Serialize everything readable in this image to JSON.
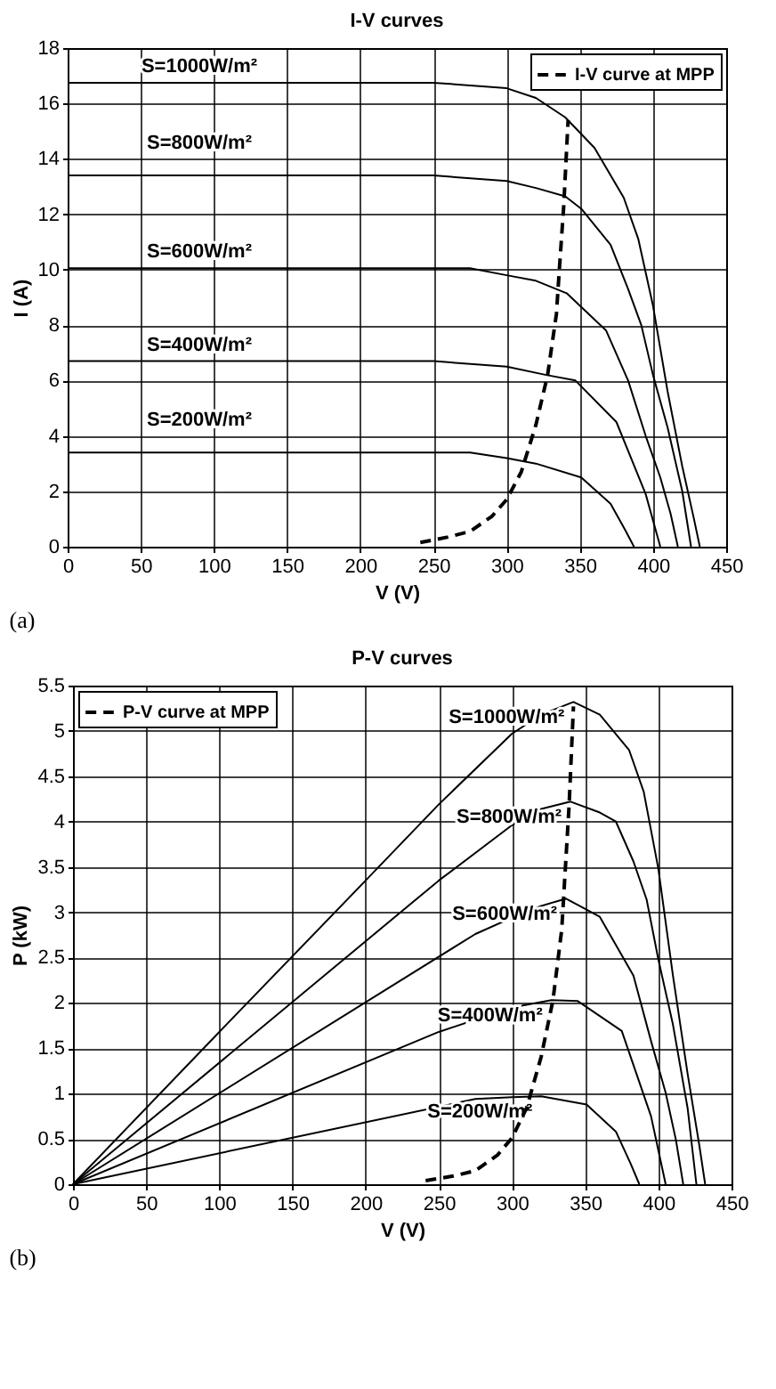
{
  "chart_data": [
    {
      "type": "line",
      "title": "I-V curves",
      "xlabel": "V (V)",
      "ylabel": "I (A)",
      "annotations": [
        "(a)"
      ],
      "xlim": [
        0,
        450
      ],
      "ylim": [
        0,
        18
      ],
      "xticks": [
        0,
        50,
        100,
        150,
        200,
        250,
        300,
        350,
        400,
        450
      ],
      "yticks": [
        0,
        2,
        4,
        6,
        8,
        10,
        12,
        14,
        16,
        18
      ],
      "grid": true,
      "legend": "top right",
      "line_style": "solid",
      "marker": "none",
      "series": [
        {
          "name": "S=1000W/m²",
          "color": "#000000",
          "x": [
            0,
            250,
            300,
            320,
            340,
            360,
            380,
            390,
            400,
            410,
            420,
            428,
            432
          ],
          "values": [
            16.75,
            16.75,
            16.55,
            16.2,
            15.5,
            14.4,
            12.6,
            11.1,
            8.7,
            5.6,
            2.9,
            1.0,
            0
          ]
        },
        {
          "name": "S=800W/m²",
          "color": "#000000",
          "x": [
            0,
            250,
            300,
            320,
            340,
            351,
            371,
            383,
            392,
            400,
            410,
            420,
            426
          ],
          "values": [
            13.4,
            13.4,
            13.2,
            12.95,
            12.65,
            12.2,
            10.9,
            9.3,
            8.0,
            6.2,
            4.3,
            2.0,
            0
          ]
        },
        {
          "name": "S=600W/m²",
          "color": "#000000",
          "x": [
            0,
            275,
            300,
            320,
            341,
            368,
            383,
            395,
            405,
            412,
            417
          ],
          "values": [
            10.05,
            10.05,
            9.8,
            9.6,
            9.15,
            7.8,
            6.0,
            4.0,
            2.5,
            1.2,
            0
          ]
        },
        {
          "name": "S=400W/m²",
          "color": "#000000",
          "x": [
            0,
            250,
            300,
            327,
            347,
            375,
            395,
            405
          ],
          "values": [
            6.7,
            6.7,
            6.5,
            6.2,
            6.0,
            4.5,
            1.9,
            0
          ]
        },
        {
          "name": "S=200W/m²",
          "color": "#000000",
          "x": [
            0,
            275,
            300,
            320,
            351,
            371,
            381,
            387
          ],
          "values": [
            3.4,
            3.4,
            3.2,
            3.0,
            2.5,
            1.55,
            0.6,
            0
          ]
        },
        {
          "name": "I-V curve at MPP",
          "color": "#000000",
          "line_style": "dashed",
          "x": [
            241,
            260,
            275,
            290,
            300,
            310,
            320,
            328,
            334,
            336,
            339,
            342
          ],
          "values": [
            0.15,
            0.35,
            0.55,
            1.1,
            1.7,
            2.7,
            4.4,
            6.2,
            8.4,
            10,
            12.3,
            15.4
          ]
        }
      ]
    },
    {
      "type": "line",
      "title": "P-V curves",
      "xlabel": "V (V)",
      "ylabel": "P (kW)",
      "annotations": [
        "(b)"
      ],
      "xlim": [
        0,
        450
      ],
      "ylim": [
        0,
        5.5
      ],
      "xticks": [
        0,
        50,
        100,
        150,
        200,
        250,
        300,
        350,
        400,
        450
      ],
      "yticks": [
        0,
        0.5,
        1,
        1.5,
        2,
        2.5,
        3,
        3.5,
        4,
        4.5,
        5,
        5.5
      ],
      "grid": true,
      "legend": "top left",
      "line_style": "solid",
      "marker": "none",
      "series": [
        {
          "name": "S=1000W/m²",
          "color": "#000000",
          "x": [
            0,
            100,
            200,
            250,
            300,
            320,
            342,
            360,
            380,
            390,
            400,
            410,
            420,
            428,
            432
          ],
          "values": [
            0,
            1.68,
            3.35,
            4.19,
            4.97,
            5.18,
            5.32,
            5.18,
            4.79,
            4.33,
            3.48,
            2.3,
            1.22,
            0.43,
            0
          ]
        },
        {
          "name": "S=800W/m²",
          "color": "#000000",
          "x": [
            0,
            250,
            300,
            320,
            340,
            360,
            371,
            383,
            392,
            400,
            410,
            420,
            426
          ],
          "values": [
            0,
            3.35,
            3.96,
            4.14,
            4.22,
            4.1,
            4.0,
            3.56,
            3.14,
            2.48,
            1.76,
            0.84,
            0
          ]
        },
        {
          "name": "S=600W/m²",
          "color": "#000000",
          "x": [
            0,
            275,
            300,
            320,
            337,
            360,
            383,
            395,
            405,
            412,
            417
          ],
          "values": [
            0,
            2.76,
            2.94,
            3.07,
            3.15,
            2.95,
            2.3,
            1.58,
            1.01,
            0.49,
            0
          ]
        },
        {
          "name": "S=400W/m²",
          "color": "#000000",
          "x": [
            0,
            250,
            300,
            327,
            345,
            375,
            395,
            405
          ],
          "values": [
            0,
            1.68,
            1.95,
            2.03,
            2.02,
            1.69,
            0.75,
            0
          ]
        },
        {
          "name": "S=200W/m²",
          "color": "#000000",
          "x": [
            0,
            275,
            300,
            320,
            351,
            371,
            381,
            387
          ],
          "values": [
            0,
            0.94,
            0.96,
            0.97,
            0.88,
            0.58,
            0.23,
            0
          ]
        },
        {
          "name": "P-V curve at MPP",
          "color": "#000000",
          "line_style": "dashed",
          "x": [
            241,
            260,
            275,
            290,
            300,
            310,
            320,
            328,
            334,
            336,
            339,
            342
          ],
          "values": [
            0.04,
            0.09,
            0.15,
            0.32,
            0.51,
            0.84,
            1.41,
            2.03,
            2.81,
            3.36,
            4.17,
            5.27
          ]
        }
      ]
    }
  ]
}
